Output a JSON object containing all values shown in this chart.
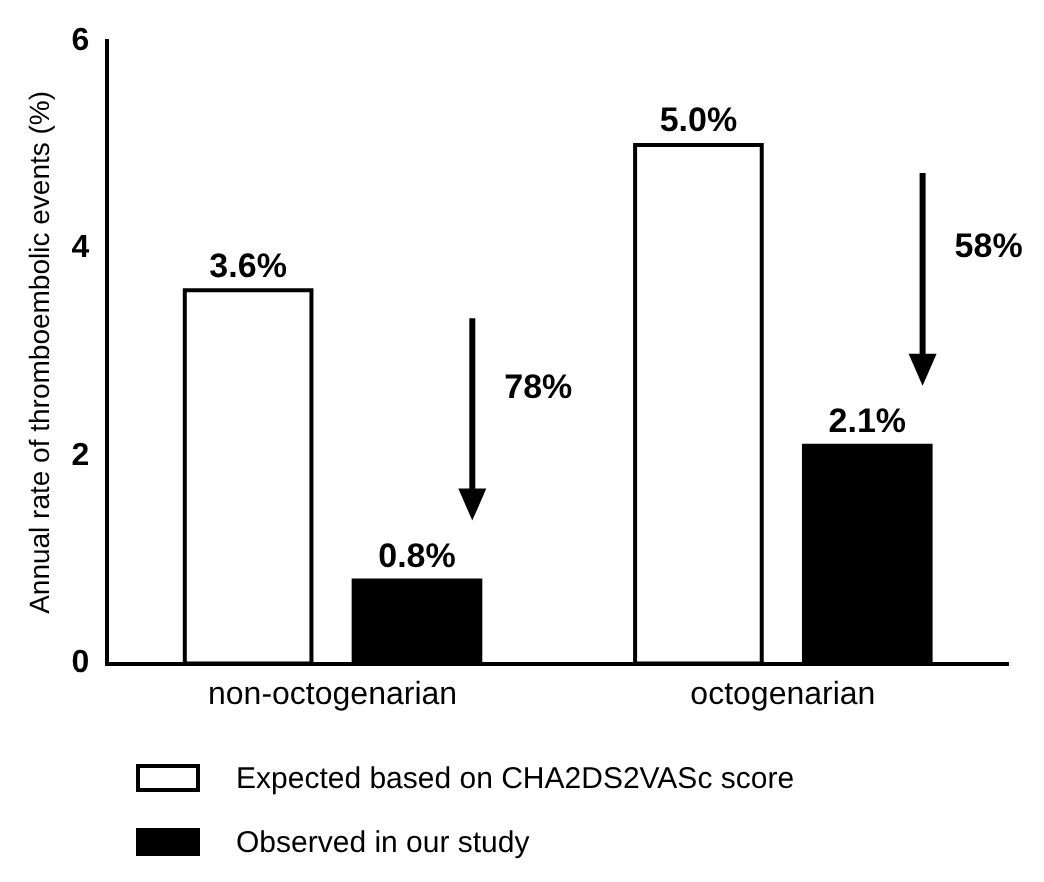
{
  "chart_data": {
    "type": "bar",
    "ylabel": "Annual rate of thromboembolic events (%)",
    "categories": [
      "non-octogenarian",
      "octogenarian"
    ],
    "series": [
      {
        "name": "Expected based on CHA2DS2VASc score",
        "color": "#ffffff",
        "values": [
          3.6,
          5.0
        ],
        "value_labels": [
          "3.6%",
          "5.0%"
        ]
      },
      {
        "name": "Observed in our study",
        "color": "#000000",
        "values": [
          0.8,
          2.1
        ],
        "value_labels": [
          "0.8%",
          "2.1%"
        ]
      }
    ],
    "ylim": [
      0,
      6
    ],
    "yticks": [
      0,
      2,
      4,
      6
    ],
    "grid": false,
    "legend": "bottom",
    "annotations": [
      "78%",
      "58%"
    ]
  }
}
